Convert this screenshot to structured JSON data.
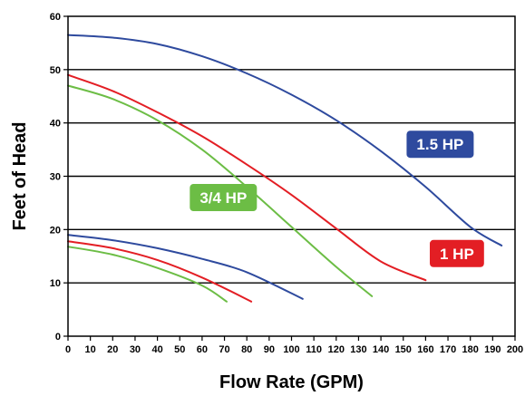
{
  "chart_data": {
    "type": "line",
    "title": "",
    "xlabel": "Flow Rate (GPM)",
    "ylabel": "Feet of Head",
    "xlim": [
      0,
      200
    ],
    "ylim": [
      0,
      60
    ],
    "x_ticks": [
      "0",
      "10",
      "20",
      "30",
      "40",
      "50",
      "60",
      "70",
      "80",
      "90",
      "100",
      "110",
      "120",
      "130",
      "140",
      "150",
      "160",
      "170",
      "180",
      "190",
      "200"
    ],
    "y_ticks": [
      "0",
      "10",
      "20",
      "30",
      "40",
      "50",
      "60"
    ],
    "grid": "horizontal",
    "series": [
      {
        "name": "1.5 HP",
        "color": "#2e4a9e",
        "x": [
          0,
          20,
          40,
          60,
          80,
          100,
          120,
          140,
          160,
          180,
          194
        ],
        "y": [
          56.5,
          56,
          54.8,
          52.5,
          49.3,
          45.3,
          40.5,
          34.7,
          28,
          20.5,
          17
        ]
      },
      {
        "name": "1 HP",
        "color": "#e31e24",
        "x": [
          0,
          20,
          40,
          60,
          80,
          100,
          120,
          140,
          160
        ],
        "y": [
          49,
          46,
          42,
          37.5,
          32.2,
          26.5,
          20.2,
          14,
          10.5
        ]
      },
      {
        "name": "3/4 HP",
        "color": "#6cbd45",
        "x": [
          0,
          20,
          40,
          60,
          80,
          100,
          120,
          136
        ],
        "y": [
          47,
          44.5,
          40.5,
          35,
          28,
          20.5,
          13,
          7.5
        ]
      },
      {
        "name": "",
        "color": "#2e4a9e",
        "x": [
          0,
          20,
          40,
          60,
          80,
          105
        ],
        "y": [
          19,
          18,
          16.5,
          14.5,
          12,
          7
        ]
      },
      {
        "name": "",
        "color": "#e31e24",
        "x": [
          0,
          20,
          40,
          60,
          82
        ],
        "y": [
          17.8,
          16.5,
          14.3,
          11,
          6.5
        ]
      },
      {
        "name": "",
        "color": "#6cbd45",
        "x": [
          0,
          20,
          40,
          60,
          71
        ],
        "y": [
          16.8,
          15.3,
          12.8,
          9.5,
          6.5
        ]
      }
    ],
    "labels": [
      {
        "text": "1.5 HP",
        "color": "#2e4a9e",
        "x": 166.5,
        "y": 36
      },
      {
        "text": "1 HP",
        "color": "#e31e24",
        "x": 174,
        "y": 15.5
      },
      {
        "text": "3/4 HP",
        "color": "#6cbd45",
        "x": 69.5,
        "y": 26
      }
    ]
  }
}
